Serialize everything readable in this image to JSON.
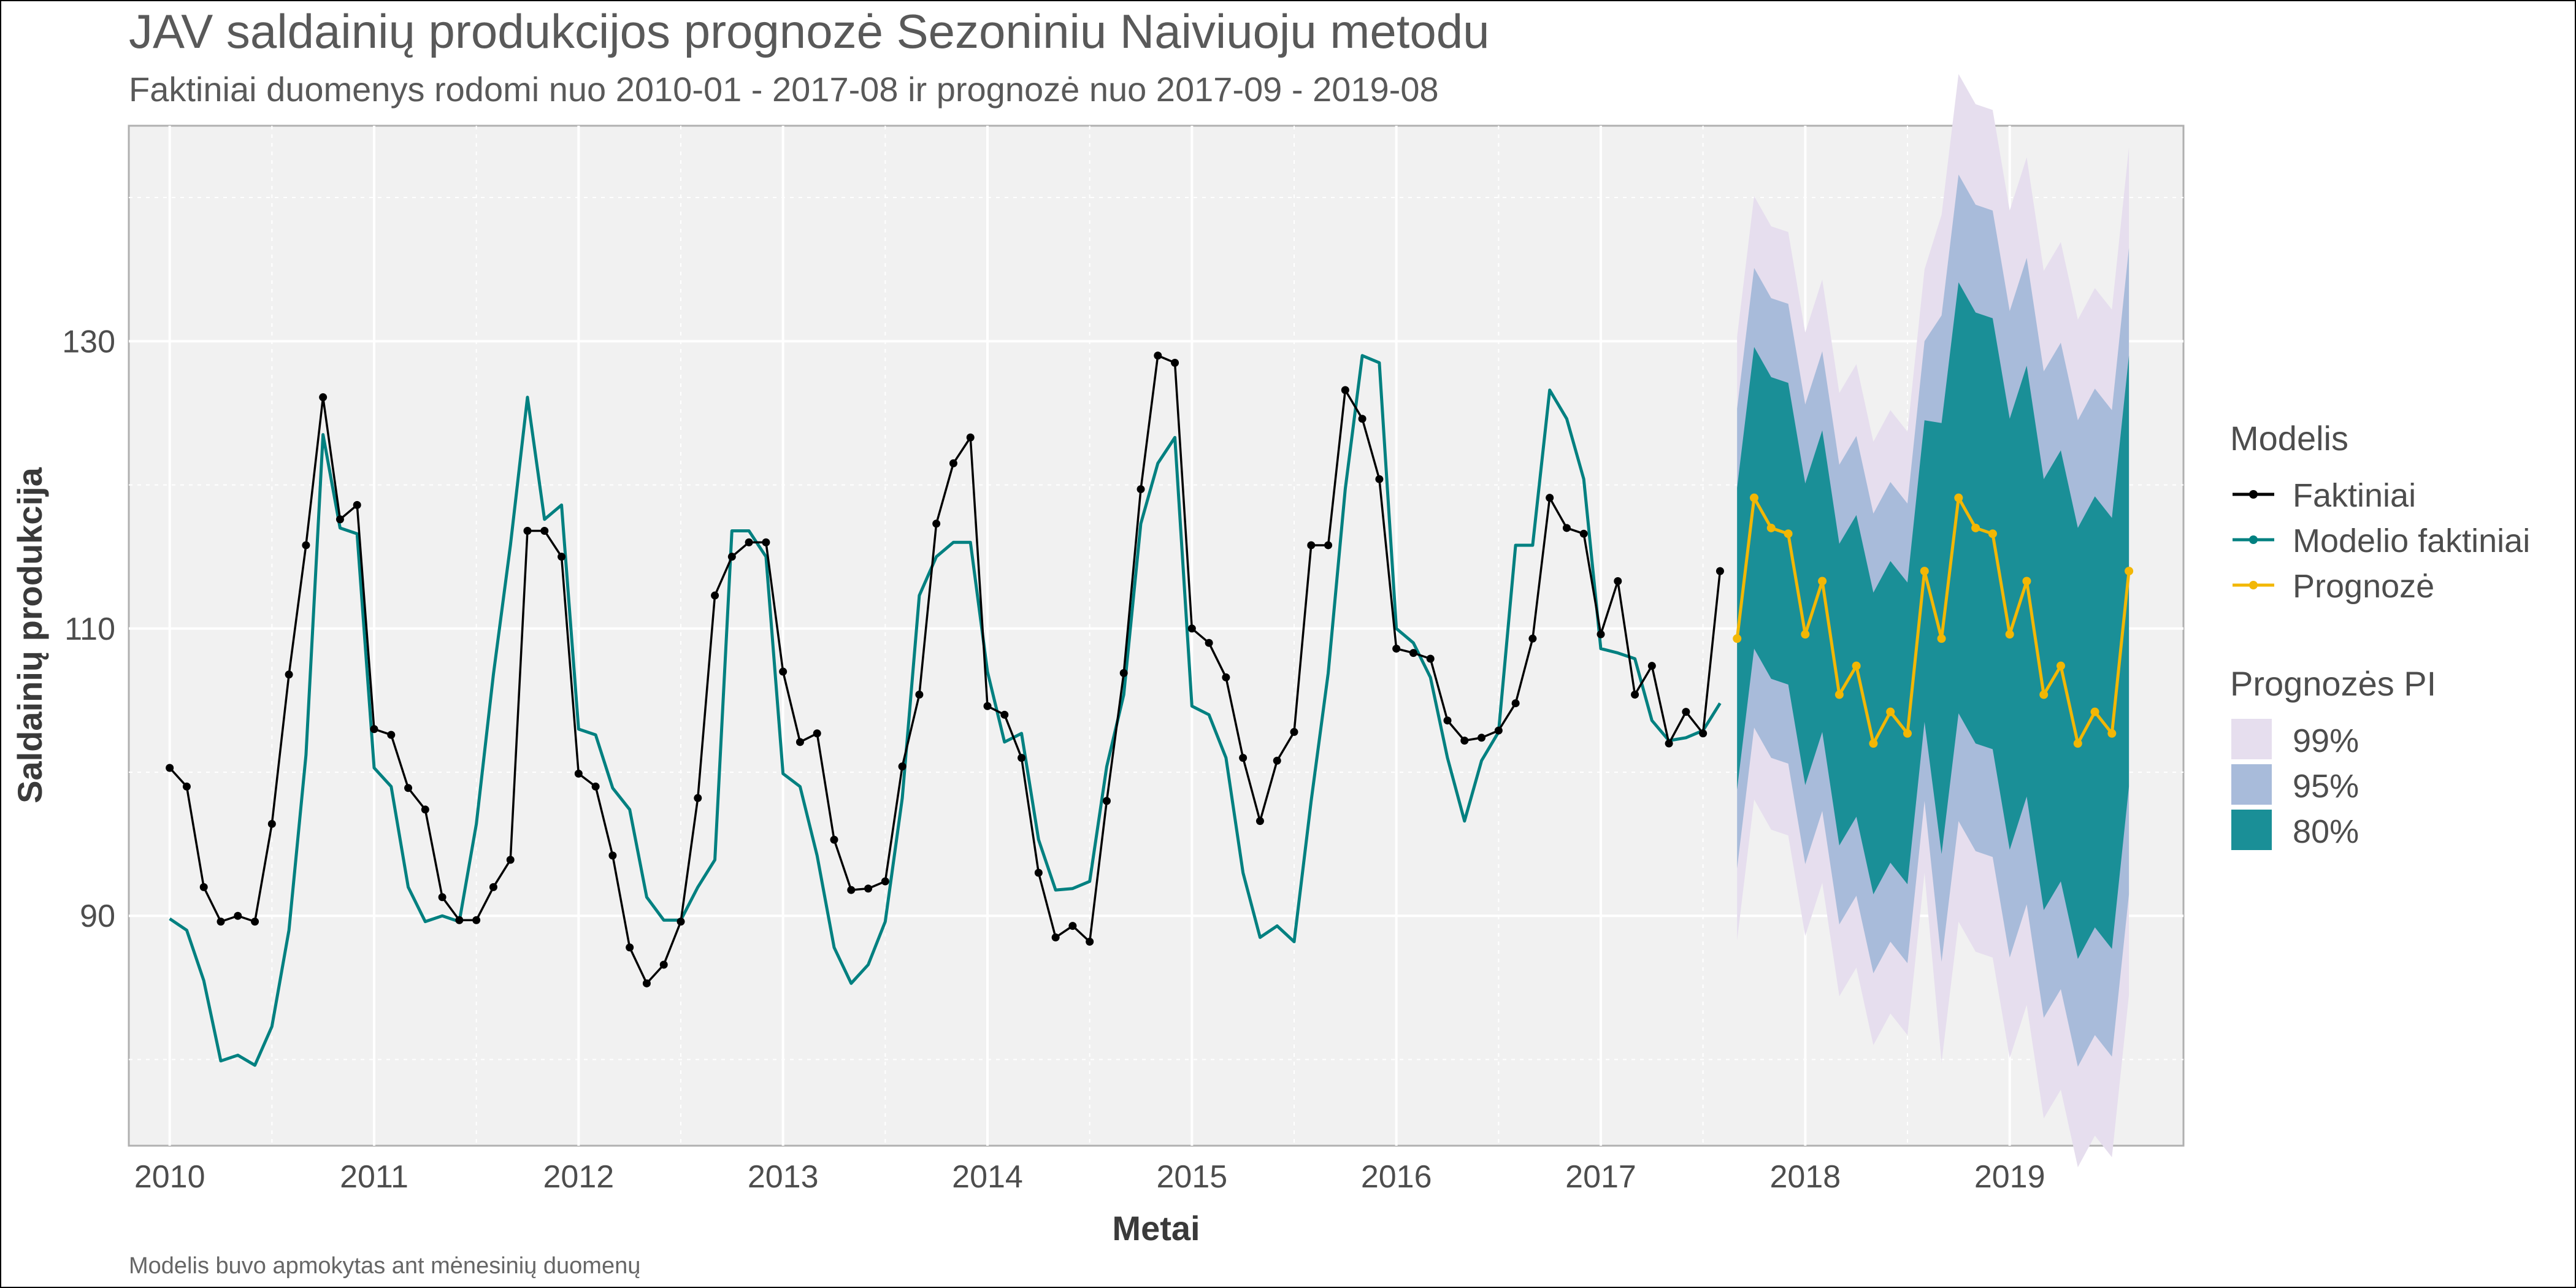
{
  "chart_data": {
    "type": "line",
    "title": "JAV saldainių produkcijos prognozė Sezoniniu Naiviuoju metodu",
    "subtitle": "Faktiniai duomenys rodomi nuo 2010-01 - 2017-08 ir prognozė nuo 2017-09 - 2019-08",
    "caption": "Modelis buvo apmokytas ant mėnesinių duomenų",
    "xlabel": "Metai",
    "ylabel": "Saldainių produkcija",
    "x_ticks": [
      "2010",
      "2011",
      "2012",
      "2013",
      "2014",
      "2015",
      "2016",
      "2017",
      "2018",
      "2019"
    ],
    "y_ticks": [
      90,
      110,
      130
    ],
    "xlim": [
      2009.8,
      2019.85
    ],
    "ylim": [
      74,
      145
    ],
    "legend": {
      "models_title": "Modelis",
      "models": [
        {
          "name": "Faktiniai",
          "color": "#000000"
        },
        {
          "name": "Modelio faktiniai",
          "color": "#008080"
        },
        {
          "name": "Prognozė",
          "color": "#F2B705"
        }
      ],
      "pi_title": "Prognozės PI",
      "pi": [
        {
          "name": "99%",
          "color": "#E6DEEE"
        },
        {
          "name": "95%",
          "color": "#A8BBDA"
        },
        {
          "name": "80%",
          "color": "#1A8F97"
        }
      ],
      "position": "right"
    },
    "actual_start": "2010-01",
    "forecast_start": "2017-09",
    "series": [
      {
        "name": "Faktiniai",
        "values": [
          100.3,
          99.0,
          92.0,
          89.6,
          90.0,
          89.6,
          96.4,
          106.8,
          115.8,
          126.1,
          117.6,
          118.6,
          103.0,
          102.6,
          98.9,
          97.4,
          91.3,
          89.7,
          89.7,
          92.0,
          93.9,
          116.8,
          116.8,
          115.0,
          99.9,
          99.0,
          94.2,
          87.8,
          85.3,
          86.6,
          89.6,
          98.2,
          112.3,
          115.0,
          116.0,
          116.0,
          107.0,
          102.1,
          102.7,
          95.3,
          91.8,
          91.9,
          92.4,
          100.4,
          105.4,
          117.3,
          121.5,
          123.3,
          104.6,
          104.0,
          101.0,
          93.0,
          88.5,
          89.3,
          88.2,
          98.0,
          106.9,
          119.7,
          129.0,
          128.5,
          110.0,
          109.0,
          106.6,
          101.0,
          96.6,
          100.8,
          102.8,
          115.8,
          115.8,
          126.6,
          124.6,
          120.4,
          108.6,
          108.3,
          107.9,
          103.6,
          102.2,
          102.4,
          102.9,
          104.8,
          109.3,
          119.1,
          117.0,
          116.6,
          109.6,
          113.3,
          105.4,
          107.4,
          102.0,
          104.2,
          102.7,
          114.0
        ]
      },
      {
        "name": "Modelio faktiniai",
        "values": [
          89.8,
          89.0,
          85.5,
          79.9,
          80.3,
          79.6,
          82.3,
          89.0,
          101.2,
          123.5,
          117.0,
          116.6,
          100.3,
          99.0,
          92.0,
          89.6,
          90.0,
          89.6,
          96.4,
          106.8,
          115.8,
          126.1,
          117.6,
          118.6,
          103.0,
          102.6,
          98.9,
          97.4,
          91.3,
          89.7,
          89.7,
          92.0,
          93.9,
          116.8,
          116.8,
          115.0,
          99.9,
          99.0,
          94.2,
          87.8,
          85.3,
          86.6,
          89.6,
          98.2,
          112.3,
          115.0,
          116.0,
          116.0,
          107.0,
          102.1,
          102.7,
          95.3,
          91.8,
          91.9,
          92.4,
          100.4,
          105.4,
          117.3,
          121.5,
          123.3,
          104.6,
          104.0,
          101.0,
          93.0,
          88.5,
          89.3,
          88.2,
          98.0,
          106.9,
          119.7,
          129.0,
          128.5,
          110.0,
          109.0,
          106.6,
          101.0,
          96.6,
          100.8,
          102.8,
          115.8,
          115.8,
          126.6,
          124.6,
          120.4,
          108.6,
          108.3,
          107.9,
          103.6,
          102.2,
          102.4,
          102.9,
          104.8
        ]
      },
      {
        "name": "Prognozė",
        "values": [
          109.3,
          119.1,
          117.0,
          116.6,
          109.6,
          113.3,
          105.4,
          107.4,
          102.0,
          104.2,
          102.7,
          114.0,
          109.3,
          119.1,
          117.0,
          116.6,
          109.6,
          113.3,
          105.4,
          107.4,
          102.0,
          104.2,
          102.7,
          114.0
        ]
      }
    ],
    "pi_half_widths_year1": {
      "80%": 10.5,
      "95%": 16.0,
      "99%": 21.0
    },
    "pi_half_widths_year2": {
      "80%": 15.0,
      "95%": 22.5,
      "99%": 29.5
    }
  }
}
